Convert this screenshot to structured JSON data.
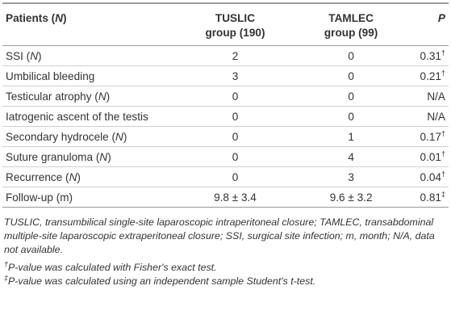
{
  "table": {
    "header": {
      "patients": [
        "Patients (",
        "N",
        ")"
      ],
      "tuslic": [
        "TUSLIC",
        "group (190)"
      ],
      "tamlec": [
        "TAMLEC",
        "group (99)"
      ],
      "p": "P"
    },
    "rows": [
      {
        "label": [
          "SSI (",
          "N",
          ")"
        ],
        "tuslic": "2",
        "tamlec": "0",
        "p": {
          "value": "0.31",
          "mark": "†"
        }
      },
      {
        "label": [
          "Umbilical bleeding"
        ],
        "tuslic": "3",
        "tamlec": "0",
        "p": {
          "value": "0.21",
          "mark": "†"
        }
      },
      {
        "label": [
          "Testicular atrophy (",
          "N",
          ")"
        ],
        "tuslic": "0",
        "tamlec": "0",
        "p": {
          "value": "N/A"
        }
      },
      {
        "label": [
          "Iatrogenic ascent of the testis"
        ],
        "tuslic": "0",
        "tamlec": "0",
        "p": {
          "value": "N/A"
        }
      },
      {
        "label": [
          "Secondary hydrocele (",
          "N",
          ")"
        ],
        "tuslic": "0",
        "tamlec": "1",
        "p": {
          "value": "0.17",
          "mark": "†"
        }
      },
      {
        "label": [
          "Suture granuloma (",
          "N",
          ")"
        ],
        "tuslic": "0",
        "tamlec": "4",
        "p": {
          "value": "0.01",
          "mark": "†"
        }
      },
      {
        "label": [
          "Recurrence (",
          "N",
          ")"
        ],
        "tuslic": "0",
        "tamlec": "3",
        "p": {
          "value": "0.04",
          "mark": "†"
        }
      },
      {
        "label": [
          "Follow-up (m)"
        ],
        "tuslic": "9.8 ± 3.4",
        "tamlec": "9.6 ± 3.2",
        "p": {
          "value": "0.81",
          "mark": "‡"
        }
      }
    ]
  },
  "notes": {
    "abbreviations": "TUSLIC, transumbilical single-site laparoscopic intraperitoneal closure; TAMLEC, transabdominal multiple-site laparoscopic extraperitoneal closure; SSI, surgical site infection; m, month; N/A, data not available.",
    "footnotes": [
      {
        "mark": "†",
        "text": "P-value was calculated with Fisher's exact test."
      },
      {
        "mark": "‡",
        "text": "P-value was calculated using an independent sample Student's t-test."
      }
    ]
  }
}
